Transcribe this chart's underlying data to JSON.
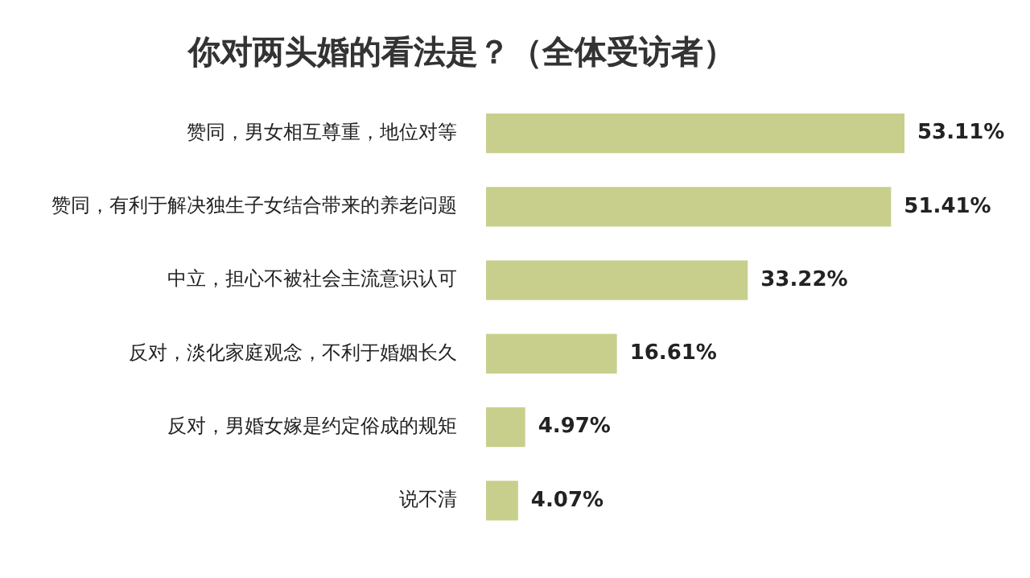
{
  "chart_data": {
    "type": "bar",
    "orientation": "horizontal",
    "title": "你对两头婚的看法是？（全体受访者）",
    "categories": [
      "赞同，男女相互尊重，地位对等",
      "赞同，有利于解决独生子女结合带来的养老问题",
      "中立，担心不被社会主流意识认可",
      "反对，淡化家庭观念，不利于婚姻长久",
      "反对，男婚女嫁是约定俗成的规矩",
      "说不清"
    ],
    "values": [
      53.11,
      51.41,
      33.22,
      16.61,
      4.97,
      4.07
    ],
    "value_labels": [
      "53.11%",
      "51.41%",
      "33.22%",
      "16.61%",
      "4.97%",
      "4.07%"
    ],
    "color": "#c8cf8c",
    "legend": false
  }
}
